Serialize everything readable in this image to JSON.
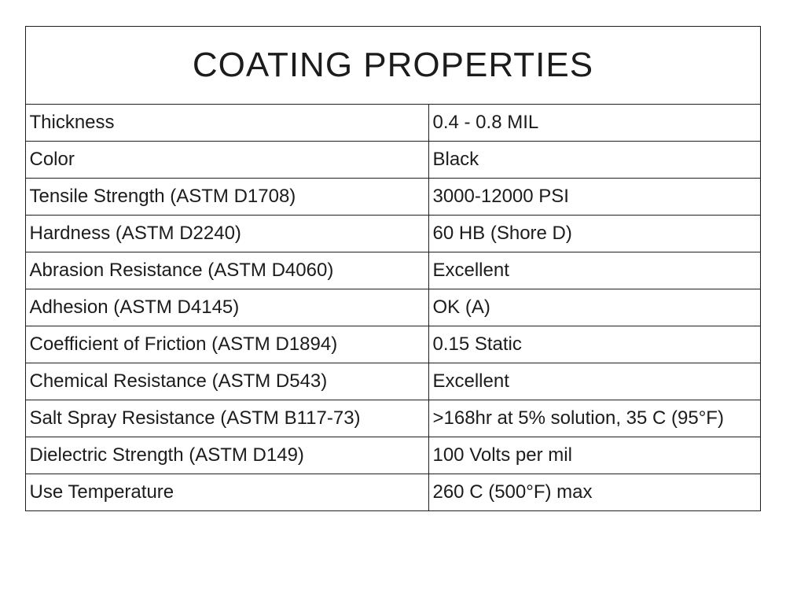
{
  "table": {
    "title": "COATING PROPERTIES",
    "rows": [
      {
        "property": "Thickness",
        "value": "0.4 - 0.8 MIL"
      },
      {
        "property": "Color",
        "value": "Black"
      },
      {
        "property": "Tensile Strength (ASTM D1708)",
        "value": "3000-12000 PSI"
      },
      {
        "property": "Hardness (ASTM D2240)",
        "value": "60 HB (Shore D)"
      },
      {
        "property": "Abrasion Resistance (ASTM D4060)",
        "value": "Excellent"
      },
      {
        "property": "Adhesion (ASTM D4145)",
        "value": "OK (A)"
      },
      {
        "property": "Coefficient of Friction (ASTM D1894)",
        "value": "0.15 Static"
      },
      {
        "property": "Chemical Resistance (ASTM D543)",
        "value": "Excellent"
      },
      {
        "property": "Salt Spray Resistance (ASTM B117-73)",
        "value": ">168hr at 5% solution, 35 C (95°F)"
      },
      {
        "property": "Dielectric Strength (ASTM D149)",
        "value": "100 Volts per mil"
      },
      {
        "property": "Use Temperature",
        "value": "260 C (500°F) max"
      }
    ]
  }
}
